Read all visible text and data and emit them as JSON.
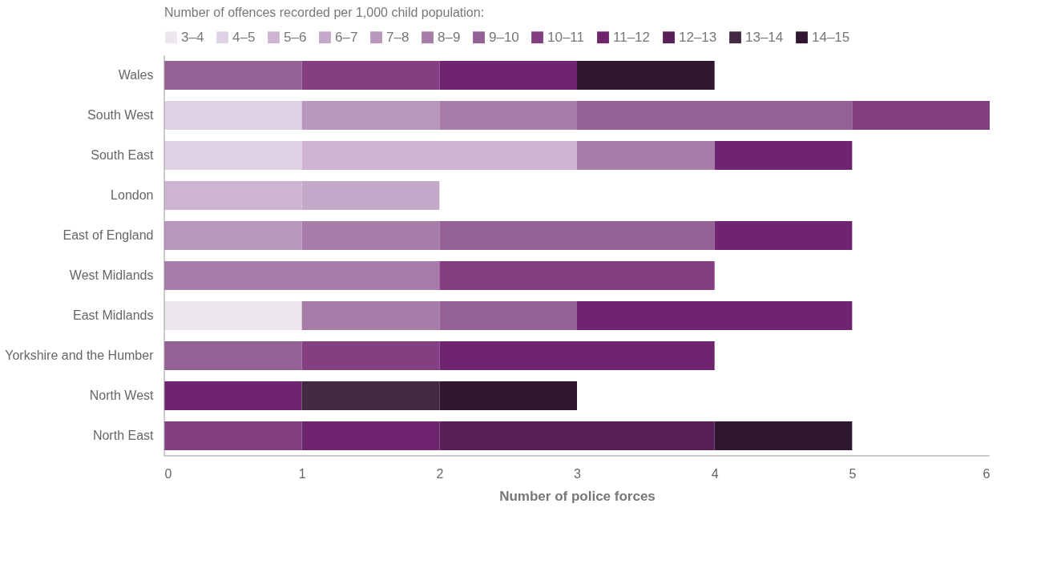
{
  "chart_data": {
    "type": "bar",
    "orientation": "horizontal",
    "stacked": true,
    "xlabel": "Number of police forces",
    "legend_title": "Number of offences recorded per 1,000 child population:",
    "legend": "top",
    "grid": false,
    "categories": [
      "Wales",
      "South West",
      "South East",
      "London",
      "East of England",
      "West Midlands",
      "East Midlands",
      "Yorkshire and the Humber",
      "North West",
      "North East"
    ],
    "xlim": [
      0,
      6
    ],
    "xticks": [
      0,
      1,
      2,
      3,
      4,
      5,
      6
    ],
    "series": [
      {
        "name": "3–4",
        "color": "#ede6ef",
        "values": [
          null,
          null,
          null,
          null,
          null,
          null,
          1,
          null,
          null,
          null
        ]
      },
      {
        "name": "4–5",
        "color": "#dfd2e5",
        "values": [
          null,
          1,
          1,
          null,
          null,
          null,
          null,
          null,
          null,
          null
        ]
      },
      {
        "name": "5–6",
        "color": "#cdb5d1",
        "values": [
          null,
          null,
          2,
          1,
          null,
          null,
          null,
          null,
          null,
          null
        ]
      },
      {
        "name": "6–7",
        "color": "#c4a8c9",
        "values": [
          null,
          null,
          null,
          1,
          null,
          null,
          null,
          null,
          null,
          null
        ]
      },
      {
        "name": "7–8",
        "color": "#b996bd",
        "values": [
          null,
          1,
          null,
          null,
          1,
          null,
          null,
          null,
          null,
          null
        ]
      },
      {
        "name": "8–9",
        "color": "#a87ca8",
        "values": [
          null,
          1,
          1,
          null,
          1,
          2,
          1,
          null,
          null,
          null
        ]
      },
      {
        "name": "9–10",
        "color": "#956096",
        "values": [
          1,
          2,
          null,
          null,
          2,
          null,
          1,
          1,
          null,
          null
        ]
      },
      {
        "name": "10–11",
        "color": "#833f82",
        "values": [
          1,
          1,
          null,
          null,
          null,
          2,
          null,
          1,
          null,
          1
        ]
      },
      {
        "name": "11–12",
        "color": "#6f2470",
        "values": [
          1,
          null,
          1,
          null,
          1,
          null,
          2,
          2,
          1,
          1
        ]
      },
      {
        "name": "12–13",
        "color": "#591f58",
        "values": [
          null,
          null,
          null,
          null,
          null,
          null,
          null,
          null,
          null,
          2
        ]
      },
      {
        "name": "13–14",
        "color": "#432a43",
        "values": [
          null,
          null,
          null,
          null,
          null,
          null,
          null,
          null,
          1,
          null
        ]
      },
      {
        "name": "14–15",
        "color": "#2f1631",
        "values": [
          1,
          null,
          null,
          null,
          null,
          null,
          null,
          null,
          1,
          1
        ]
      }
    ]
  }
}
